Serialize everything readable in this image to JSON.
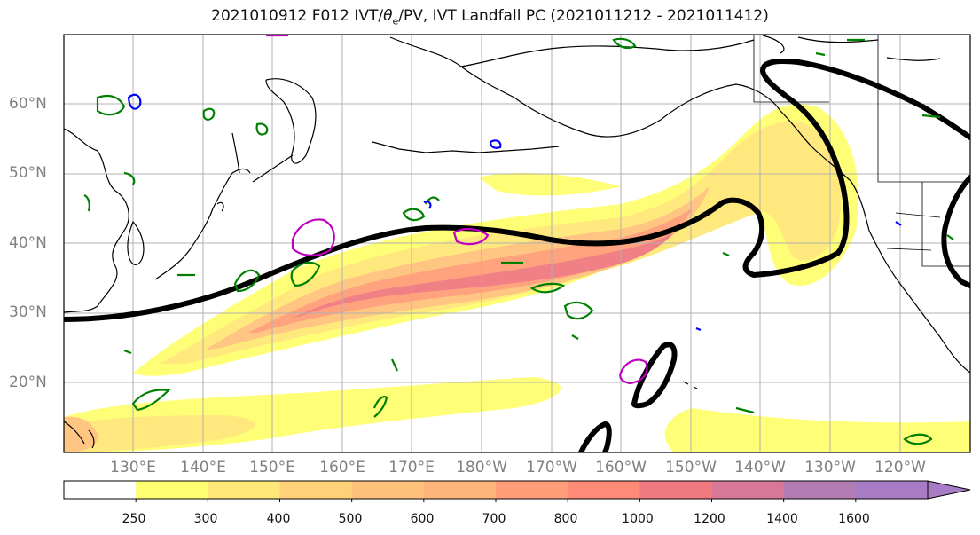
{
  "title": {
    "prefix": "2021010912 F012 IVT/",
    "theta": "θ",
    "theta_sub": "e",
    "suffix": "/PV, IVT Landfall PC (2021011212 - 2021011412)"
  },
  "map": {
    "lat_labels": [
      "60°N",
      "50°N",
      "40°N",
      "30°N",
      "20°N"
    ],
    "lon_labels": [
      "130°E",
      "140°E",
      "150°E",
      "160°E",
      "170°E",
      "180°W",
      "170°W",
      "160°W",
      "150°W",
      "140°W",
      "130°W",
      "120°W"
    ],
    "lon_range": [
      120,
      250
    ],
    "lat_range": [
      10,
      70
    ],
    "ocean_color": "#ffffff",
    "grid_color": "#b0b0b0",
    "theta_e_contour_color": "#000000",
    "pv_contour_colors": [
      "#008000",
      "#0000ff",
      "#c000c0"
    ]
  },
  "colorbar": {
    "ticks": [
      "250",
      "300",
      "400",
      "500",
      "600",
      "700",
      "800",
      "1000",
      "1200",
      "1400",
      "1600"
    ],
    "colors": [
      "#ffffff",
      "#ffff70",
      "#ffe878",
      "#ffd27a",
      "#ffc27c",
      "#ffb47c",
      "#ff9e78",
      "#ff8a78",
      "#f07a80",
      "#d87898",
      "#b47cb4",
      "#a87cc4"
    ],
    "extend": "max"
  }
}
